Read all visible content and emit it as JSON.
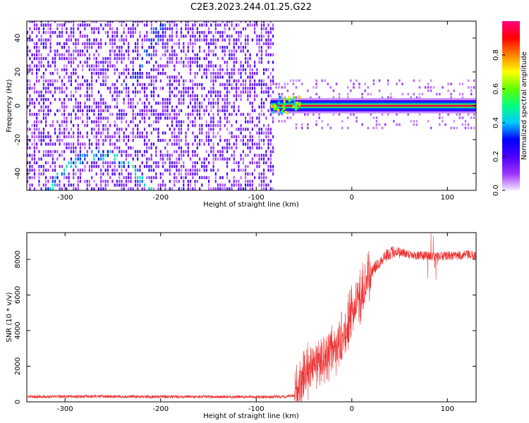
{
  "title": "C2E3.2023.244.01.25.G22",
  "chart_data": [
    {
      "type": "heatmap",
      "xlabel": "Height of straight line (km)",
      "ylabel": "Frequency (Hz)",
      "xlim": [
        -340,
        130
      ],
      "ylim": [
        -50,
        50
      ],
      "x_ticks": [
        -300,
        -200,
        -100,
        0,
        100
      ],
      "y_ticks": [
        -40,
        -20,
        0,
        20,
        40
      ],
      "colorbar": {
        "label": "Normalized spectral amplitude",
        "range": [
          0,
          1
        ],
        "ticks": [
          "0.0",
          "0.2",
          "0.4",
          "0.6",
          "0.8"
        ],
        "colormap": [
          "#f3e8ff",
          "#9b30ff",
          "#4b00ff",
          "#0000ff",
          "#00c8ff",
          "#00ff80",
          "#60ff00",
          "#ffff00",
          "#ff8000",
          "#ff0000",
          "#ff0080"
        ]
      },
      "features": {
        "noise_region_x": [
          -340,
          -83
        ],
        "tone_start_x": -85,
        "tone_frequency_hz": 0,
        "arc_center_x": -265,
        "arc_peak_freq_hz": -30,
        "arc_edge_freq_hz": -48
      }
    },
    {
      "type": "line",
      "xlabel": "Height of straight line (km)",
      "ylabel": "SNR (10 * v/v)",
      "xlim": [
        -340,
        130
      ],
      "ylim": [
        0,
        9500
      ],
      "x_ticks": [
        -300,
        -200,
        -100,
        0,
        100
      ],
      "y_ticks": [
        0,
        2000,
        4000,
        6000,
        8000
      ],
      "color": "#ee3333",
      "series": [
        {
          "x": [
            -340,
            -300,
            -250,
            -200,
            -150,
            -100,
            -70,
            -60,
            -55,
            -50,
            -45,
            -40,
            -35,
            -30,
            -25,
            -20,
            -15,
            -10,
            -5,
            0,
            5,
            10,
            15,
            20,
            25,
            30,
            35,
            40,
            45,
            50,
            60,
            70,
            80,
            90,
            100,
            110,
            120,
            130
          ],
          "y": [
            300,
            300,
            300,
            290,
            280,
            280,
            280,
            350,
            1000,
            1600,
            1800,
            2000,
            2200,
            2400,
            2700,
            3000,
            3200,
            3500,
            4200,
            5000,
            5500,
            6000,
            6600,
            7200,
            7600,
            7900,
            8200,
            8350,
            8450,
            8400,
            8300,
            8200,
            8200,
            8150,
            8200,
            8200,
            8250,
            8200
          ]
        }
      ]
    }
  ]
}
